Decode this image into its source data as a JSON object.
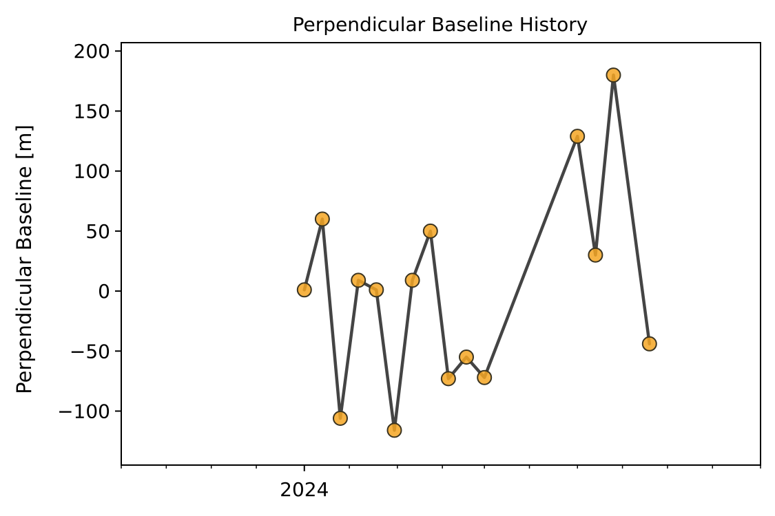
{
  "chart_data": {
    "type": "line",
    "title": "Perpendicular Baseline History",
    "xlabel": "",
    "ylabel": "Perpendicular Baseline [m]",
    "x_tick_labels": [
      {
        "date": "2024-01-01",
        "label": "2024"
      }
    ],
    "x_minor_tick_dates": [
      "2023-11-01",
      "2023-11-16",
      "2023-12-01",
      "2023-12-16",
      "2024-01-01",
      "2024-01-16",
      "2024-02-01",
      "2024-02-16",
      "2024-03-01",
      "2024-03-16",
      "2024-04-01",
      "2024-04-16",
      "2024-05-01",
      "2024-05-16",
      "2024-06-01"
    ],
    "xlim": [
      "2023-11-01",
      "2024-06-01"
    ],
    "ylim": [
      -145,
      207
    ],
    "y_ticks": [
      -100,
      -50,
      0,
      50,
      100,
      150,
      200
    ],
    "grid": false,
    "legend": "none",
    "series": [
      {
        "x": [
          "2024-01-01",
          "2024-01-07",
          "2024-01-13",
          "2024-01-19",
          "2024-01-25",
          "2024-01-31",
          "2024-02-06",
          "2024-02-12",
          "2024-02-18",
          "2024-02-24",
          "2024-03-01",
          "2024-04-01",
          "2024-04-07",
          "2024-04-13",
          "2024-04-25"
        ],
        "values": [
          1,
          60,
          -106,
          9,
          1,
          -116,
          9,
          50,
          -73,
          -55,
          -72,
          129,
          30,
          180,
          -44
        ]
      }
    ],
    "colors": {
      "line": "#444444",
      "marker_fill": "#f5a623",
      "marker_edge": "#3a3320",
      "axes": "#000000"
    }
  }
}
